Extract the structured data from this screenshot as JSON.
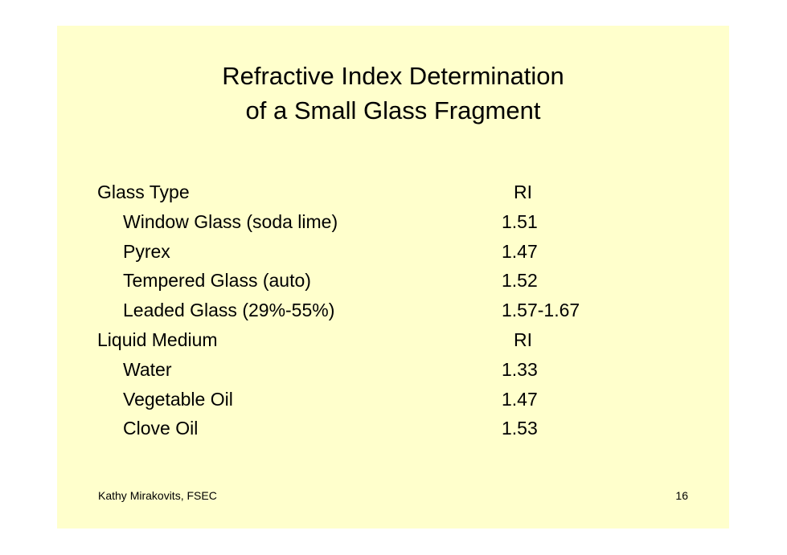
{
  "title": {
    "line1": "Refractive Index Determination",
    "line2": "of a Small Glass Fragment"
  },
  "sections": [
    {
      "header": "Glass Type",
      "value_header": "RI",
      "items": [
        {
          "label": "Window Glass (soda lime)",
          "value": "1.51"
        },
        {
          "label": "Pyrex",
          "value": "1.47"
        },
        {
          "label": "Tempered Glass (auto)",
          "value": "1.52"
        },
        {
          "label": "Leaded Glass (29%-55%)",
          "value": "1.57-1.67"
        }
      ]
    },
    {
      "header": "Liquid Medium",
      "value_header": "RI",
      "items": [
        {
          "label": "Water",
          "value": "1.33"
        },
        {
          "label": "Vegetable Oil",
          "value": "1.47"
        },
        {
          "label": "Clove Oil",
          "value": "1.53"
        }
      ]
    }
  ],
  "footer": {
    "author": "Kathy Mirakovits, FSEC",
    "page_number": "16"
  },
  "colors": {
    "slide_background": "#ffffcc",
    "page_background": "#ffffff",
    "text": "#000000"
  }
}
